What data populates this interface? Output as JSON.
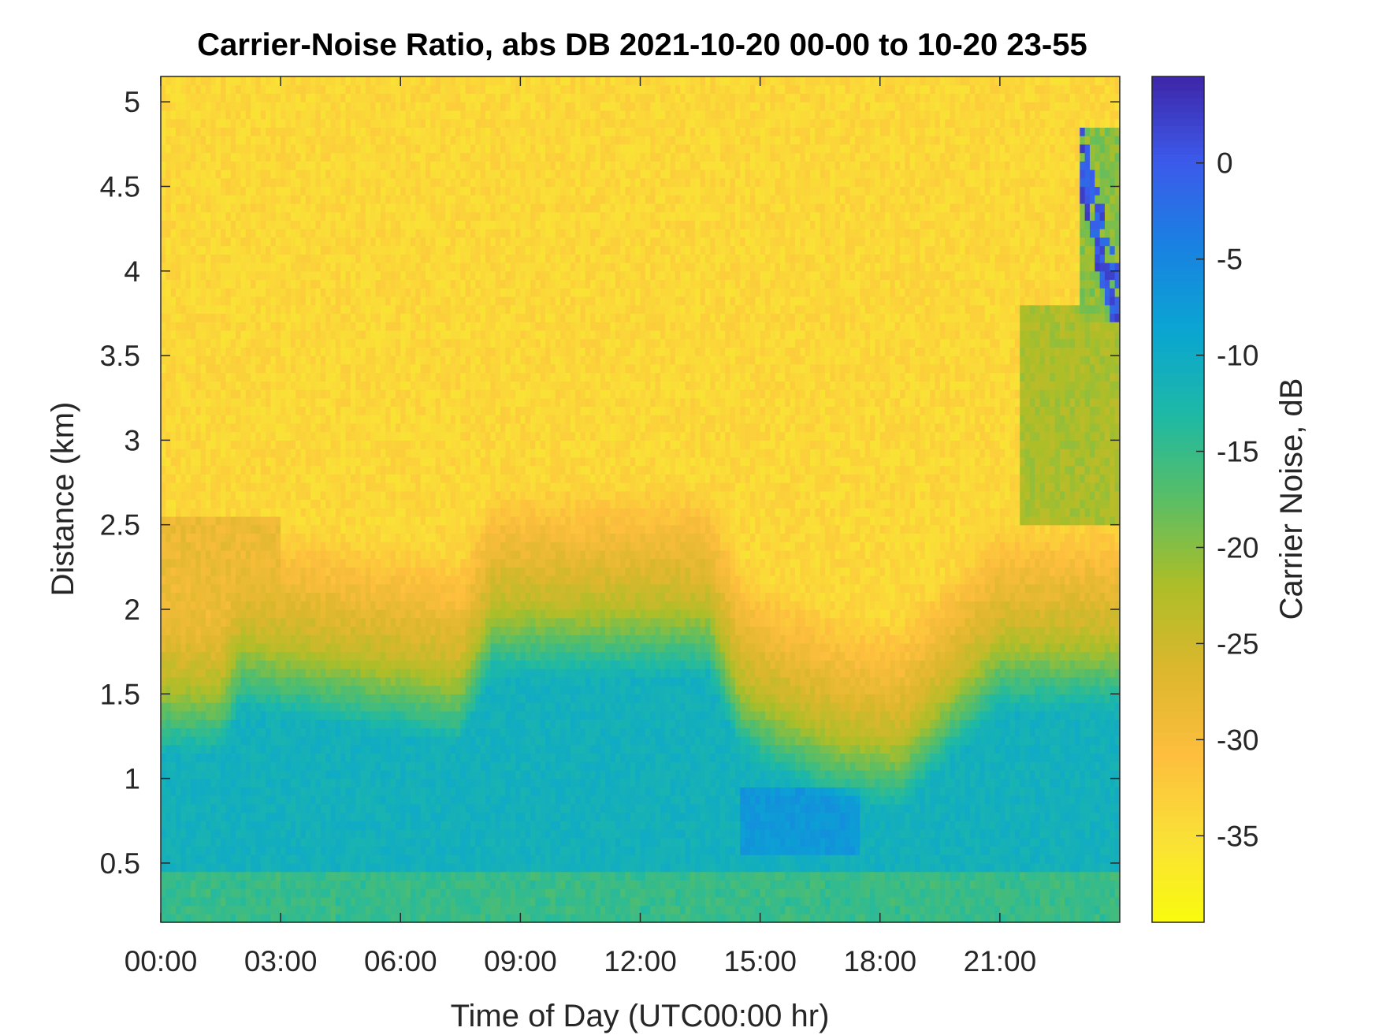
{
  "chart_data": {
    "type": "heatmap",
    "title": "Carrier-Noise Ratio, abs DB 2021-10-20 00-00 to 10-20 23-55",
    "xlabel": "Time of Day (UTC00:00 hr)",
    "ylabel": "Distance (km)",
    "colorbar_label": "Carrier Noise, dB",
    "x_unit": "hours",
    "xlim": [
      0,
      24
    ],
    "ylim": [
      0.15,
      5.15
    ],
    "clim": [
      -39.5,
      4.5
    ],
    "colormap": "parula (reversed: yellow = low, blue = high)",
    "x_ticks": [
      {
        "value": 0,
        "label": "00:00"
      },
      {
        "value": 3,
        "label": "03:00"
      },
      {
        "value": 6,
        "label": "06:00"
      },
      {
        "value": 9,
        "label": "09:00"
      },
      {
        "value": 12,
        "label": "12:00"
      },
      {
        "value": 15,
        "label": "15:00"
      },
      {
        "value": 18,
        "label": "18:00"
      },
      {
        "value": 21,
        "label": "21:00"
      }
    ],
    "y_ticks": [
      {
        "value": 0.5,
        "label": "0.5"
      },
      {
        "value": 1,
        "label": "1"
      },
      {
        "value": 1.5,
        "label": "1.5"
      },
      {
        "value": 2,
        "label": "2"
      },
      {
        "value": 2.5,
        "label": "2.5"
      },
      {
        "value": 3,
        "label": "3"
      },
      {
        "value": 3.5,
        "label": "3.5"
      },
      {
        "value": 4,
        "label": "4"
      },
      {
        "value": 4.5,
        "label": "4.5"
      },
      {
        "value": 5,
        "label": "5"
      }
    ],
    "colorbar_ticks": [
      {
        "value": 0,
        "label": "0"
      },
      {
        "value": -5,
        "label": "-5"
      },
      {
        "value": -10,
        "label": "-10"
      },
      {
        "value": -15,
        "label": "-15"
      },
      {
        "value": -20,
        "label": "-20"
      },
      {
        "value": -25,
        "label": "-25"
      },
      {
        "value": -30,
        "label": "-30"
      },
      {
        "value": -35,
        "label": "-35"
      }
    ],
    "regions": {
      "background_noise_db": -34,
      "boundary_layer_top_km": {
        "hours": [
          0,
          1.5,
          2,
          7.5,
          8.3,
          12,
          13.7,
          14.5,
          15.5,
          17,
          18.5,
          19.5,
          21,
          22,
          23.2,
          24
        ],
        "heights": [
          1.6,
          1.6,
          1.85,
          1.65,
          2.05,
          2.05,
          2.05,
          1.6,
          1.45,
          1.3,
          1.25,
          1.5,
          1.85,
          1.85,
          1.85,
          1.85
        ]
      },
      "strong_signal_zone_db": -11,
      "near_ground_db": -15,
      "cloud_event": {
        "hours": [
          23.0,
          24.0
        ],
        "distance_km": [
          3.7,
          4.85
        ],
        "max_db": 3
      }
    }
  }
}
